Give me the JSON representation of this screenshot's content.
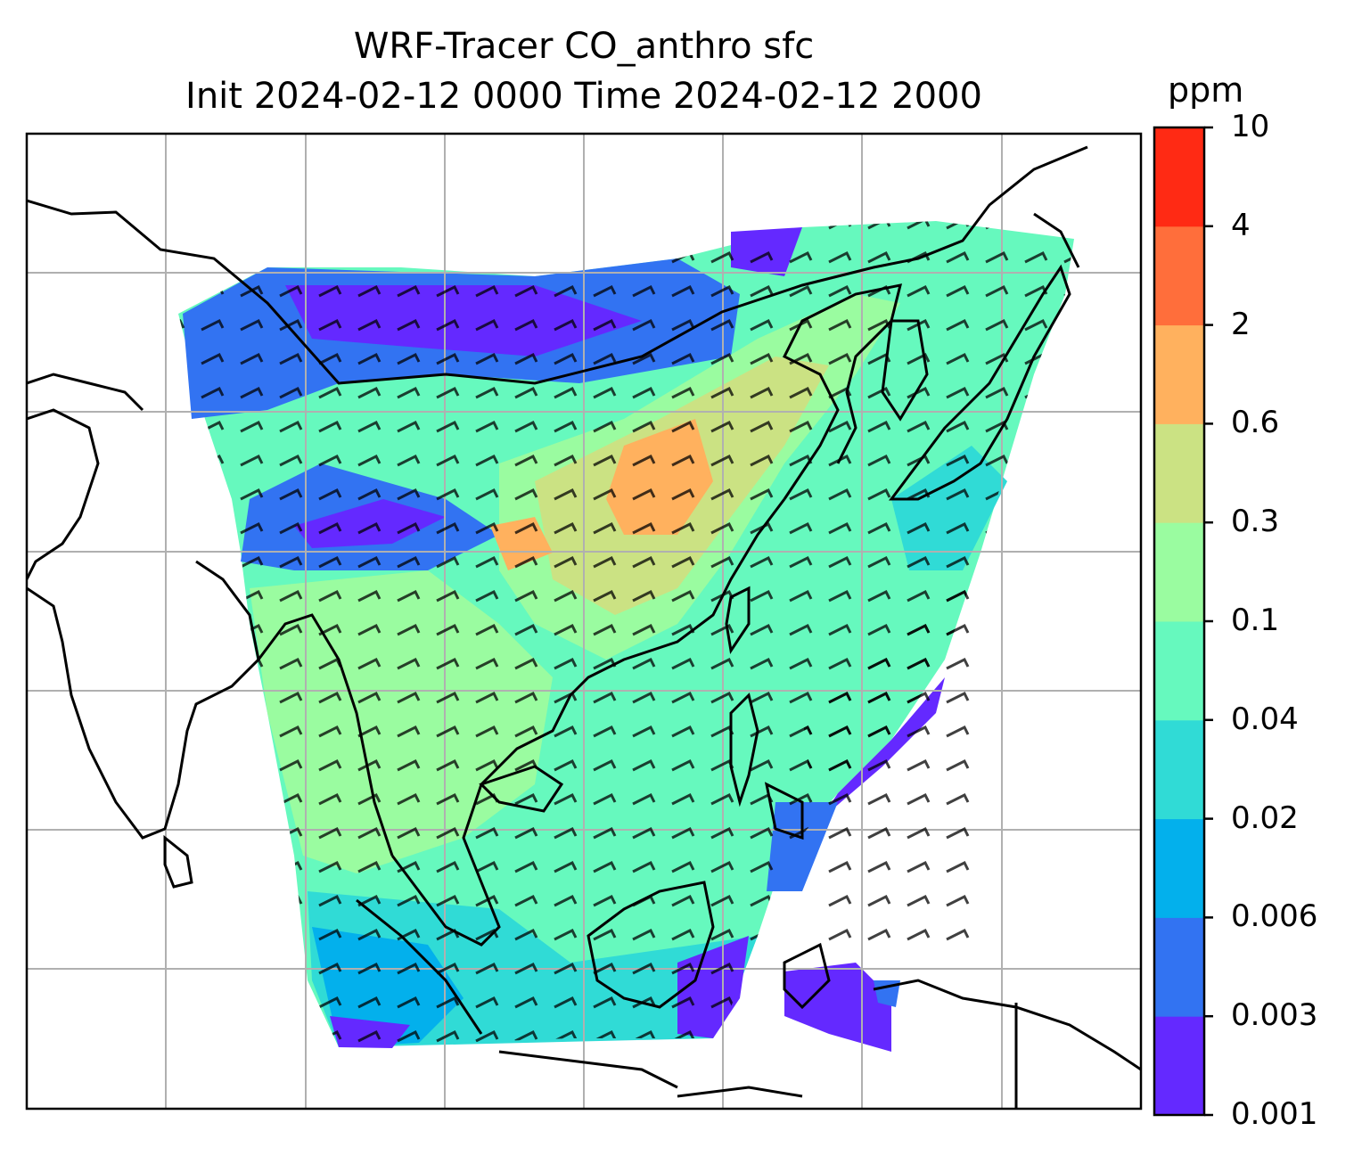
{
  "title_line1": "WRF-Tracer CO_anthro sfc",
  "title_line2": "Init 2024-02-12 0000 Time 2024-02-12 2000",
  "colorbar": {
    "unit": "ppm",
    "tick_labels": [
      "0.001",
      "0.003",
      "0.006",
      "0.02",
      "0.04",
      "0.1",
      "0.3",
      "0.6",
      "2",
      "4",
      "10"
    ],
    "colors": [
      "#6429ff",
      "#3273f2",
      "#03b0ec",
      "#30dbd6",
      "#66f9be",
      "#9afca0",
      "#cbe283",
      "#ffb15e",
      "#ff6e3b",
      "#ff2a14"
    ]
  },
  "legend": {
    "colors_meaning": "CO_anthro concentration bins"
  }
}
